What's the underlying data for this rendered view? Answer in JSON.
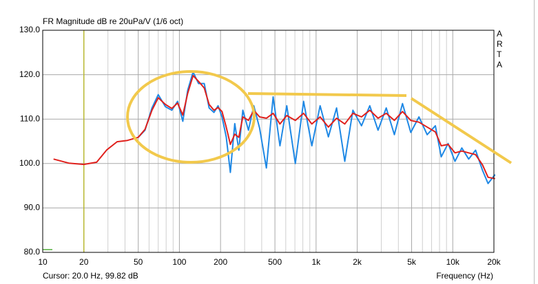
{
  "chart_data": {
    "type": "line",
    "title": "FR Magnitude dB re 20uPa/V (1/6 oct)",
    "watermark": "ARTA",
    "x_label": "Frequency (Hz)",
    "cursor": {
      "label": "Cursor: 20.0 Hz, 99.82 dB",
      "x": 20,
      "color": "#b8b830"
    },
    "xscale": "log",
    "grid": true,
    "xlim": [
      10,
      20000
    ],
    "ylim": [
      80,
      130
    ],
    "xticks": [
      10,
      20,
      50,
      100,
      200,
      500,
      {
        "value": 1000,
        "label": "1k"
      },
      {
        "value": 2000,
        "label": "2k"
      },
      {
        "value": 5000,
        "label": "5k"
      },
      {
        "value": 10000,
        "label": "10k"
      },
      {
        "value": 20000,
        "label": "20k"
      }
    ],
    "xminorticks": [
      30,
      40,
      60,
      70,
      80,
      90,
      300,
      400,
      600,
      700,
      800,
      900,
      3000,
      4000,
      6000,
      7000,
      8000,
      9000
    ],
    "yticks": [
      {
        "value": 80,
        "label": "80.0"
      },
      {
        "value": 90,
        "label": "90.0"
      },
      {
        "value": 100,
        "label": "100.0"
      },
      {
        "value": 110,
        "label": "110.0"
      },
      {
        "value": 120,
        "label": "120.0"
      },
      {
        "value": 130,
        "label": "130.0"
      }
    ],
    "x": [
      12,
      15.5,
      20,
      24.8,
      29.5,
      35,
      41.7,
      50,
      56,
      63,
      70,
      79,
      88,
      97,
      106,
      115,
      126,
      138,
      152,
      165,
      179,
      192,
      205,
      220,
      236,
      254,
      272,
      291,
      320,
      350,
      386,
      433,
      485,
      544,
      610,
      705,
      810,
      931,
      1070,
      1230,
      1412,
      1622,
      1860,
      2150,
      2470,
      2840,
      3260,
      3740,
      4290,
      4930,
      5660,
      6500,
      7460,
      8230,
      9240,
      10380,
      11650,
      13080,
      14690,
      16490,
      18130,
      20400
    ],
    "series": [
      {
        "color": "#1e88e5",
        "values": [
          null,
          null,
          null,
          null,
          null,
          null,
          null,
          105.9,
          107.5,
          112.5,
          115.5,
          112.8,
          112.0,
          114.0,
          109.5,
          116.5,
          120.6,
          118.0,
          118.0,
          112.5,
          111.5,
          113.0,
          110.5,
          106.0,
          98.0,
          109.0,
          103.0,
          112.0,
          107.5,
          113.0,
          108.0,
          99.0,
          115.0,
          104.0,
          113.0,
          100.0,
          114.0,
          104.0,
          113.0,
          106.0,
          112.5,
          100.5,
          112.0,
          108.5,
          113.0,
          107.5,
          112.5,
          106.5,
          113.5,
          107.0,
          110.5,
          106.5,
          108.5,
          101.5,
          104.5,
          100.5,
          103.5,
          101.0,
          103.0,
          98.5,
          95.5,
          97.5
        ]
      },
      {
        "color": "#e0201c",
        "values": [
          101.0,
          100.1,
          99.8,
          100.3,
          103.1,
          104.9,
          105.2,
          105.9,
          107.7,
          112.0,
          114.8,
          113.3,
          112.4,
          113.6,
          110.9,
          115.8,
          119.8,
          118.5,
          117.0,
          113.3,
          112.0,
          112.6,
          111.7,
          108.2,
          104.3,
          106.6,
          105.9,
          110.5,
          109.7,
          112.0,
          110.5,
          110.2,
          111.3,
          108.9,
          110.8,
          109.7,
          111.3,
          108.9,
          110.5,
          108.2,
          110.2,
          108.9,
          111.3,
          110.5,
          112.0,
          110.2,
          111.3,
          109.7,
          111.7,
          109.7,
          109.3,
          108.2,
          107.1,
          104.0,
          104.3,
          102.4,
          102.8,
          102.4,
          102.0,
          99.7,
          96.9,
          96.6
        ]
      }
    ]
  }
}
